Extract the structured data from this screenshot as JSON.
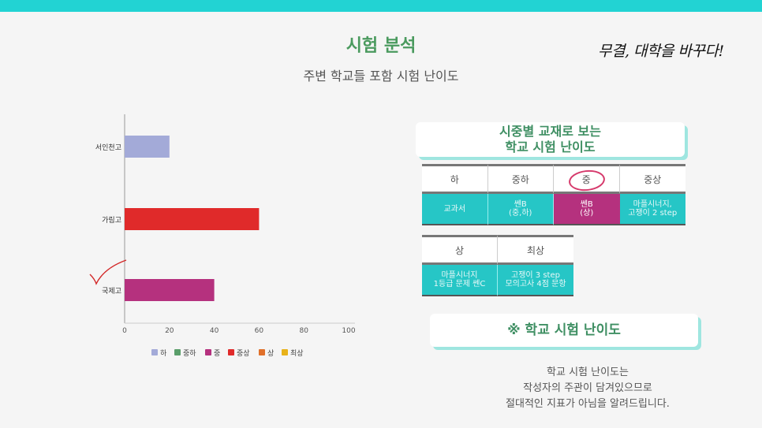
{
  "header": {
    "title": "시험 분석",
    "subtitle": "주변 학교들 포함 시험 난이도",
    "logo_text": "무결, 대학을 바꾸다!"
  },
  "colors": {
    "accent": "#22d3d3",
    "title_green": "#4a9a5e",
    "highlight": "#b5317e"
  },
  "chart_data": {
    "type": "bar",
    "orientation": "horizontal",
    "categories": [
      "서인천고",
      "가림고",
      "국제고"
    ],
    "values": [
      20,
      60,
      40
    ],
    "bar_colors": [
      "#a3aad8",
      "#e02a2a",
      "#b5317e"
    ],
    "xlim": [
      0,
      100
    ],
    "xticks": [
      0,
      20,
      40,
      60,
      80,
      100
    ],
    "grid": false,
    "legend_position": "bottom",
    "legend": [
      {
        "label": "하",
        "color": "#a3aad8"
      },
      {
        "label": "중하",
        "color": "#5a9e6a"
      },
      {
        "label": "중",
        "color": "#b5317e"
      },
      {
        "label": "중상",
        "color": "#e02a2a"
      },
      {
        "label": "상",
        "color": "#e0702a"
      },
      {
        "label": "최상",
        "color": "#e8b21a"
      }
    ],
    "checkmark_category": "국제고"
  },
  "difficulty_card": {
    "line1": "시중별 교재로 보는",
    "line2": "학교 시험 난이도"
  },
  "table1": {
    "headers": [
      "하",
      "중하",
      "중",
      "중상"
    ],
    "cells": [
      {
        "l1": "교과서",
        "l2": ""
      },
      {
        "l1": "쎈B",
        "l2": "(중,하)"
      },
      {
        "l1": "쎈B",
        "l2": "(상)"
      },
      {
        "l1": "마플시너지,",
        "l2": "고쟁이 2 step"
      }
    ],
    "highlight_index": 2
  },
  "table2": {
    "headers": [
      "상",
      "최상"
    ],
    "cells": [
      {
        "l1": "마플시너지",
        "l2": "1등급 문제 쎈C"
      },
      {
        "l1": "고쟁이 3 step",
        "l2": "모의고사 4점 문항"
      }
    ]
  },
  "note_card": {
    "label": "※ 학교 시험 난이도"
  },
  "note": {
    "line1": "학교 시험 난이도는",
    "line2": "작성자의 주관이 담겨있으므로",
    "line3": "절대적인 지표가 아님을 알려드립니다."
  }
}
